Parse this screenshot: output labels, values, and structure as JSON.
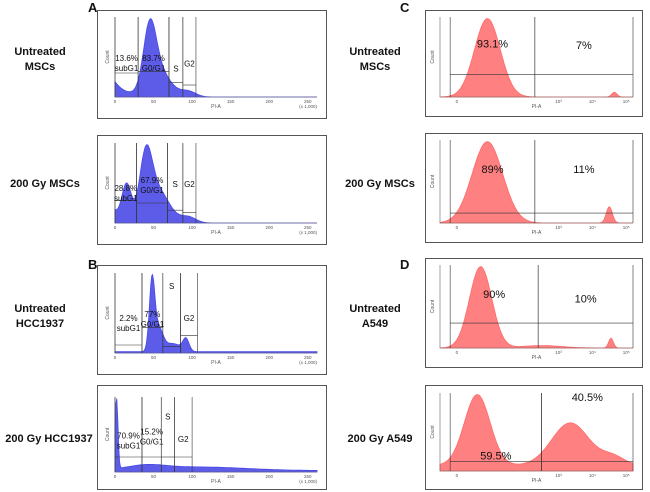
{
  "panel_letters": [
    "A",
    "B",
    "C",
    "D"
  ],
  "row_labels": {
    "A1": [
      "Untreated",
      "MSCs"
    ],
    "A2": [
      "200 Gy MSCs"
    ],
    "B1": [
      "Untreated",
      "HCC1937"
    ],
    "B2": [
      "200 Gy HCC1937"
    ],
    "C1": [
      "Untreated",
      "MSCs"
    ],
    "C2": [
      "200 Gy MSCs"
    ],
    "D1": [
      "Untreated",
      "A549"
    ],
    "D2": [
      "200 Gy A549"
    ]
  },
  "colors": {
    "cell_cycle": "#4a4ae6",
    "pi_uptake": "#ff6a6a"
  },
  "axis": {
    "linear_ticks": [
      "0",
      "50",
      "100",
      "150",
      "200",
      "250"
    ],
    "linear_mult": "(x 1,000)",
    "log_ticks": [
      "0",
      "10³",
      "10⁴",
      "10⁵"
    ],
    "x_name": "PI-A",
    "y_name": "Count"
  },
  "chart_data": [
    {
      "id": "A1",
      "type": "area",
      "scale": "linear",
      "xlim": [
        0,
        262
      ],
      "ylim": [
        0,
        1
      ],
      "gates": [
        {
          "name": "subG1",
          "pct": "13.6%",
          "x": [
            0,
            30
          ]
        },
        {
          "name": "G0/G1",
          "pct": "83.7%",
          "x": [
            30,
            70
          ]
        },
        {
          "name": "S",
          "pct": "",
          "x": [
            70,
            88
          ]
        },
        {
          "name": "G2",
          "pct": "",
          "x": [
            88,
            105
          ]
        }
      ]
    },
    {
      "id": "A2",
      "type": "area",
      "scale": "linear",
      "xlim": [
        0,
        262
      ],
      "ylim": [
        0,
        1
      ],
      "gates": [
        {
          "name": "subG1",
          "pct": "28.8%",
          "x": [
            0,
            28
          ]
        },
        {
          "name": "G0/G1",
          "pct": "67.9%",
          "x": [
            28,
            68
          ]
        },
        {
          "name": "S",
          "pct": "",
          "x": [
            68,
            88
          ]
        },
        {
          "name": "G2",
          "pct": "",
          "x": [
            88,
            105
          ]
        }
      ]
    },
    {
      "id": "B1",
      "type": "area",
      "scale": "linear",
      "xlim": [
        0,
        262
      ],
      "ylim": [
        0,
        1
      ],
      "gates": [
        {
          "name": "subG1",
          "pct": "2.2%",
          "x": [
            0,
            35
          ]
        },
        {
          "name": "G0/G1",
          "pct": "77%",
          "x": [
            35,
            62
          ]
        },
        {
          "name": "S",
          "pct": "",
          "x": [
            62,
            85
          ]
        },
        {
          "name": "G2",
          "pct": "",
          "x": [
            85,
            107
          ]
        }
      ]
    },
    {
      "id": "B2",
      "type": "area",
      "scale": "linear",
      "xlim": [
        0,
        262
      ],
      "ylim": [
        0,
        1
      ],
      "gates": [
        {
          "name": "subG1",
          "pct": "70.9%",
          "x": [
            0,
            35
          ]
        },
        {
          "name": "G0/G1",
          "pct": "15.2%",
          "x": [
            35,
            60
          ]
        },
        {
          "name": "S",
          "pct": "",
          "x": [
            60,
            77
          ]
        },
        {
          "name": "G2",
          "pct": "",
          "x": [
            77,
            100
          ]
        }
      ]
    },
    {
      "id": "C1",
      "type": "area",
      "scale": "log",
      "xlim": [
        -0.5,
        5.2
      ],
      "ylim": [
        0,
        1
      ],
      "gates": [
        {
          "name": "",
          "pct": "93.1%",
          "x": [
            -0.2,
            2.3
          ]
        },
        {
          "name": "",
          "pct": "7%",
          "x": [
            2.3,
            5.2
          ]
        }
      ]
    },
    {
      "id": "C2",
      "type": "area",
      "scale": "log",
      "xlim": [
        -0.5,
        5.2
      ],
      "ylim": [
        0,
        1
      ],
      "gates": [
        {
          "name": "",
          "pct": "89%",
          "x": [
            -0.2,
            2.3
          ]
        },
        {
          "name": "",
          "pct": "11%",
          "x": [
            2.3,
            5.2
          ]
        }
      ]
    },
    {
      "id": "D1",
      "type": "area",
      "scale": "log",
      "xlim": [
        -0.5,
        5.2
      ],
      "ylim": [
        0,
        1
      ],
      "gates": [
        {
          "name": "",
          "pct": "90%",
          "x": [
            -0.2,
            2.4
          ]
        },
        {
          "name": "",
          "pct": "10%",
          "x": [
            2.4,
            5.2
          ]
        }
      ]
    },
    {
      "id": "D2",
      "type": "area",
      "scale": "log",
      "xlim": [
        -0.5,
        5.2
      ],
      "ylim": [
        0,
        1
      ],
      "gates": [
        {
          "name": "",
          "pct": "59.5%",
          "x": [
            -0.2,
            2.5
          ]
        },
        {
          "name": "",
          "pct": "40.5%",
          "x": [
            2.5,
            5.2
          ]
        }
      ]
    }
  ]
}
